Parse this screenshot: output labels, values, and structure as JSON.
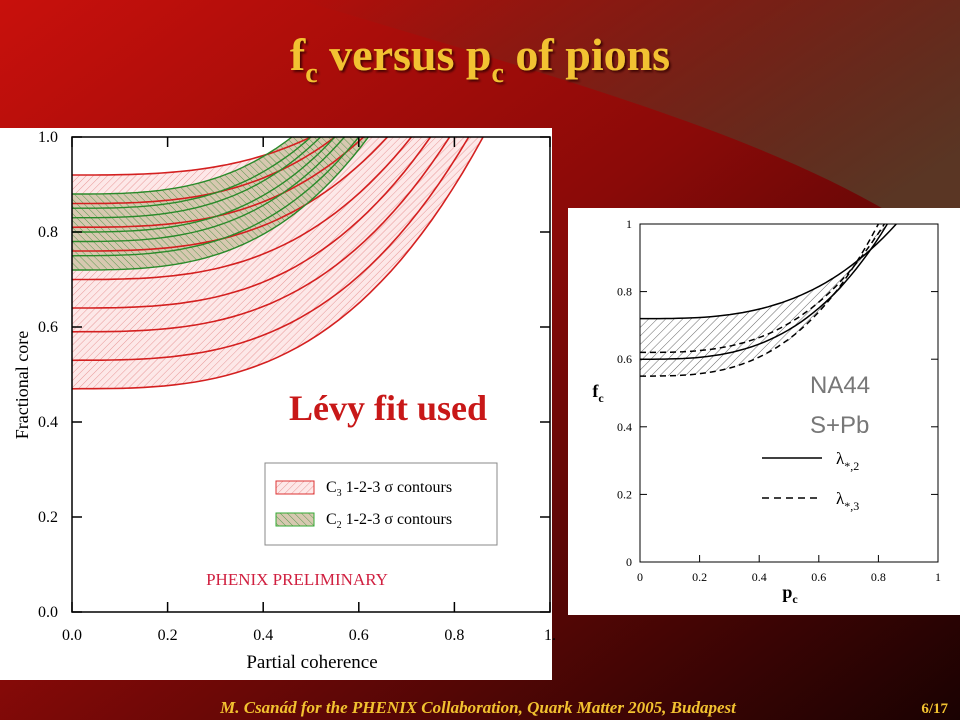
{
  "title": [
    "f",
    "c",
    " versus p",
    "c",
    " of pions"
  ],
  "left_plot": {
    "y_label": "Fractional core",
    "x_label": "Partial coherence",
    "x_ticks": [
      "0.0",
      "0.2",
      "0.4",
      "0.6",
      "0.8",
      "1."
    ],
    "y_ticks": [
      "0.0",
      "0.2",
      "0.4",
      "0.6",
      "0.8",
      "1.0"
    ],
    "annotation": "Lévy fit used",
    "legend": [
      [
        "C",
        "3",
        " 1-2-3 σ contours"
      ],
      [
        "C",
        "2",
        " 1-2-3 σ contours"
      ]
    ],
    "watermark": "PHENIX PRELIMINARY"
  },
  "right_plot": {
    "x_label": [
      "p",
      "c"
    ],
    "y_label": [
      "f",
      "c"
    ],
    "x_ticks": [
      "0",
      "0.2",
      "0.4",
      "0.6",
      "0.8",
      "1"
    ],
    "y_ticks": [
      "0",
      "0.2",
      "0.4",
      "0.6",
      "0.8",
      "1"
    ],
    "annotation": [
      "NA44",
      "S+Pb"
    ],
    "legend": [
      [
        "λ",
        "*,2"
      ],
      [
        "λ",
        "*,3"
      ]
    ]
  },
  "footer": "M. Csanád for the PHENIX Collaboration, Quark Matter 2005, Budapest",
  "page": "6/17"
}
